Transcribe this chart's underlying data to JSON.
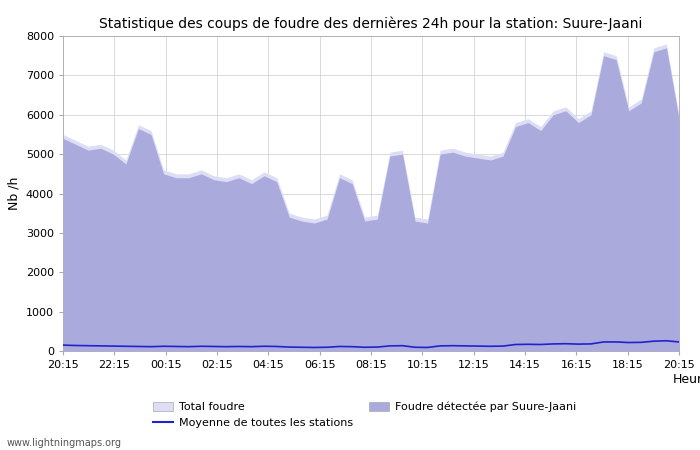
{
  "title": "Statistique des coups de foudre des dernières 24h pour la station: Suure-Jaani",
  "xlabel": "Heure",
  "ylabel": "Nb /h",
  "watermark": "www.lightningmaps.org",
  "x_ticks": [
    "20:15",
    "22:15",
    "00:15",
    "02:15",
    "04:15",
    "06:15",
    "08:15",
    "10:15",
    "12:15",
    "14:15",
    "16:15",
    "18:15",
    "20:15"
  ],
  "ylim": [
    0,
    8000
  ],
  "yticks": [
    0,
    1000,
    2000,
    3000,
    4000,
    5000,
    6000,
    7000,
    8000
  ],
  "legend": [
    "Total foudre",
    "Moyenne de toutes les stations",
    "Foudre détectée par Suure-Jaani"
  ],
  "total_color": "#ddddf5",
  "detected_color": "#aaaadd",
  "mean_color": "#2222cc",
  "background_color": "#ffffff",
  "total_fill": [
    5500,
    5350,
    5200,
    5250,
    5100,
    4850,
    5750,
    5600,
    4600,
    4500,
    4500,
    4600,
    4450,
    4400,
    4500,
    4350,
    4550,
    4400,
    3500,
    3400,
    3350,
    3450,
    4500,
    4350,
    3400,
    3450,
    5050,
    5100,
    3400,
    3350,
    5100,
    5150,
    5050,
    5000,
    4950,
    5050,
    5800,
    5900,
    5700,
    6100,
    6200,
    5900,
    6100,
    7600,
    7500,
    6200,
    6400,
    7700,
    7800,
    6000
  ],
  "detected_fill": [
    5400,
    5250,
    5100,
    5150,
    5000,
    4750,
    5650,
    5500,
    4500,
    4400,
    4400,
    4500,
    4350,
    4300,
    4400,
    4250,
    4450,
    4300,
    3400,
    3300,
    3250,
    3350,
    4400,
    4250,
    3300,
    3350,
    4950,
    5000,
    3300,
    3250,
    5000,
    5050,
    4950,
    4900,
    4850,
    4950,
    5700,
    5800,
    5600,
    6000,
    6100,
    5800,
    6000,
    7500,
    7400,
    6100,
    6300,
    7600,
    7700,
    5900
  ],
  "mean_line": [
    150,
    140,
    135,
    130,
    125,
    120,
    115,
    110,
    120,
    115,
    110,
    120,
    115,
    110,
    115,
    110,
    120,
    115,
    100,
    95,
    90,
    95,
    115,
    110,
    95,
    100,
    130,
    135,
    95,
    90,
    130,
    135,
    130,
    125,
    120,
    125,
    165,
    170,
    165,
    180,
    185,
    175,
    180,
    230,
    230,
    215,
    220,
    250,
    260,
    230
  ]
}
